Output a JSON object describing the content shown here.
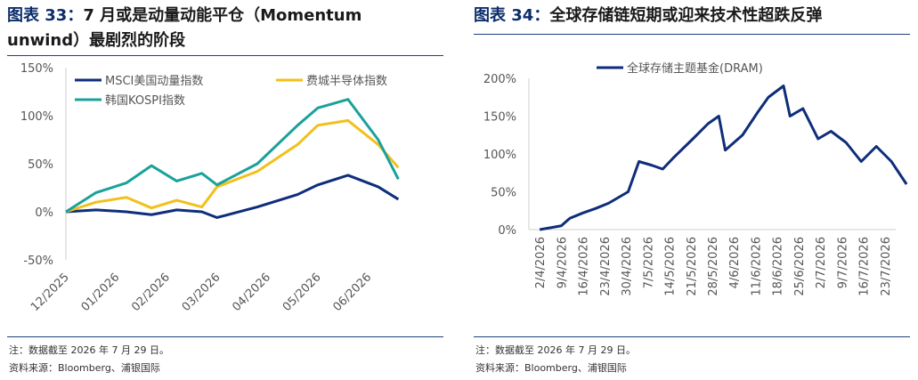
{
  "left": {
    "fig_label": "图表  33：",
    "title_line1": "7 月或是动量动能平仓（Momentum",
    "title_line2": "unwind）最剧烈的阶段",
    "note": "注：数据截至 2026 年 7 月 29 日。",
    "source": "资料来源：Bloomberg、浦银国际"
  },
  "right": {
    "fig_label": "图表  34：",
    "title": "全球存储链短期或迎来技术性超跌反弹",
    "note": "注：数据截至 2026 年 7 月 29 日。",
    "source": "资料来源：Bloomberg、浦银国际"
  },
  "colors": {
    "navy": "#0e2d7a",
    "gold": "#f2c01b",
    "teal": "#1aa19b",
    "rule": "#1f3f7f"
  },
  "chart_data": [
    {
      "type": "line",
      "ylim": [
        -50,
        150
      ],
      "yticks": [
        "150%",
        "100%",
        "50%",
        "0%",
        "-50%"
      ],
      "ytick_values": [
        150,
        100,
        50,
        0,
        -50
      ],
      "xticks": [
        "12/2025",
        "01/2026",
        "02/2026",
        "03/2026",
        "04/2026",
        "05/2026",
        "06/2026"
      ],
      "x_period_index": [
        0,
        1,
        2,
        3,
        4,
        5,
        6,
        7
      ],
      "legend_position": "top-left",
      "series": [
        {
          "name": "MSCI美国动量指数",
          "color": "navy",
          "values": [
            0,
            2,
            0,
            -3,
            2,
            0,
            -6,
            5,
            18,
            28,
            38,
            26,
            13
          ]
        },
        {
          "name": "费城半导体指数",
          "color": "gold",
          "values": [
            0,
            10,
            15,
            4,
            12,
            5,
            26,
            42,
            70,
            90,
            95,
            70,
            46
          ]
        },
        {
          "name": "韩国KOSPI指数",
          "color": "teal",
          "values": [
            0,
            20,
            30,
            48,
            32,
            40,
            28,
            50,
            90,
            108,
            117,
            75,
            34
          ]
        }
      ],
      "series_x": [
        0,
        0.6,
        1.2,
        1.7,
        2.2,
        2.7,
        3.0,
        3.8,
        4.6,
        5.0,
        5.6,
        6.2,
        6.6
      ]
    },
    {
      "type": "line",
      "ylim": [
        0,
        200
      ],
      "yticks": [
        "200%",
        "150%",
        "100%",
        "50%",
        "0%"
      ],
      "ytick_values": [
        200,
        150,
        100,
        50,
        0
      ],
      "xticks": [
        "2/4/2026",
        "9/4/2026",
        "16/4/2026",
        "23/4/2026",
        "30/4/2026",
        "7/5/2026",
        "14/5/2026",
        "21/5/2026",
        "28/5/2026",
        "4/6/2026",
        "11/6/2026",
        "18/6/2026",
        "25/6/2026",
        "2/7/2026",
        "9/7/2026",
        "16/7/2026",
        "23/7/2026"
      ],
      "legend_position": "top-center",
      "series": [
        {
          "name": "全球存储主题基金(DRAM)",
          "color": "navy",
          "values": [
            0,
            5,
            15,
            22,
            28,
            35,
            50,
            90,
            85,
            80,
            95,
            120,
            140,
            150,
            105,
            125,
            155,
            175,
            190,
            150,
            160,
            120,
            130,
            115,
            90,
            110,
            90,
            60
          ]
        }
      ],
      "series_x": [
        0,
        1,
        1.4,
        2,
        2.6,
        3.2,
        4.1,
        4.6,
        5.2,
        5.7,
        6.2,
        7.1,
        7.8,
        8.3,
        8.6,
        9.4,
        10.1,
        10.6,
        11.3,
        11.6,
        12.2,
        12.9,
        13.5,
        14.2,
        14.9,
        15.6,
        16.3,
        17
      ]
    }
  ]
}
